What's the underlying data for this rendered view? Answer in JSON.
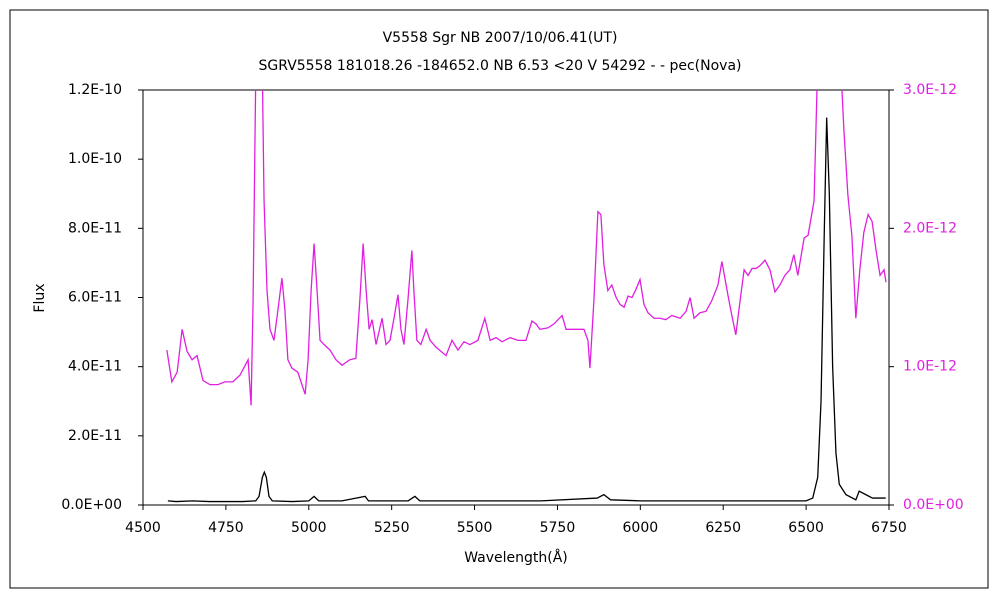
{
  "chart_data": {
    "type": "line",
    "title": "V5558 Sgr   NB   2007/10/06.41(UT)",
    "subtitle": "SGRV5558 181018.26 -184652.0 NB 6.53 <20 V 54292 - - pec(Nova)",
    "x_label": "Wavelength(Å)",
    "y_label": "Flux",
    "xlim": [
      4500,
      6750
    ],
    "xticks": [
      4500,
      4750,
      5000,
      5250,
      5500,
      5750,
      6000,
      6250,
      6500,
      6750
    ],
    "ylim": [
      0,
      1.2e-10
    ],
    "yticks": [
      {
        "value": 0,
        "label": "0.0E+00"
      },
      {
        "value": 2e-11,
        "label": "2.0E-11"
      },
      {
        "value": 4e-11,
        "label": "4.0E-11"
      },
      {
        "value": 6e-11,
        "label": "6.0E-11"
      },
      {
        "value": 8e-11,
        "label": "8.0E-11"
      },
      {
        "value": 1e-10,
        "label": "1.0E-10"
      },
      {
        "value": 1.2e-10,
        "label": "1.2E-10"
      }
    ],
    "y2lim": [
      0,
      3e-12
    ],
    "y2ticks": [
      {
        "value": 0,
        "label": "0.0E+00"
      },
      {
        "value": 1e-12,
        "label": "1.0E-12"
      },
      {
        "value": 2e-12,
        "label": "2.0E-12"
      },
      {
        "value": 3e-12,
        "label": "3.0E-12"
      }
    ],
    "y2color": "#e020e0",
    "series": [
      {
        "color": "#000000",
        "x": [
          4575,
          4600,
          4650,
          4700,
          4750,
          4800,
          4840,
          4850,
          4860,
          4866,
          4872,
          4880,
          4890,
          4950,
          5000,
          5016,
          5030,
          5100,
          5170,
          5180,
          5300,
          5320,
          5335,
          5500,
          5700,
          5870,
          5890,
          5910,
          6000,
          6200,
          6400,
          6500,
          6520,
          6535,
          6545,
          6555,
          6562,
          6570,
          6580,
          6590,
          6600,
          6620,
          6650,
          6660,
          6680,
          6700,
          6740
        ],
        "values": [
          1.2e-12,
          1e-12,
          1.2e-12,
          1e-12,
          1e-12,
          1e-12,
          1.2e-12,
          2.5e-12,
          8e-12,
          9.5e-12,
          8e-12,
          2.5e-12,
          1.2e-12,
          1e-12,
          1.2e-12,
          2.5e-12,
          1.2e-12,
          1.2e-12,
          2.5e-12,
          1.2e-12,
          1.2e-12,
          2.5e-12,
          1.2e-12,
          1.2e-12,
          1.2e-12,
          2e-12,
          3e-12,
          1.5e-12,
          1.2e-12,
          1.2e-12,
          1.2e-12,
          1.2e-12,
          2e-12,
          8e-12,
          3e-11,
          8e-11,
          1.12e-10,
          9e-11,
          4e-11,
          1.5e-11,
          6e-12,
          3e-12,
          1.5e-12,
          4e-12,
          3e-12,
          2e-12,
          2e-12
        ]
      },
      {
        "color": "#e020e0",
        "axis": "y2",
        "x": [
          4572,
          4587,
          4603,
          4618,
          4633,
          4648,
          4663,
          4681,
          4702,
          4726,
          4747,
          4771,
          4793,
          4817,
          4826,
          4832,
          4841,
          4859,
          4865,
          4874,
          4883,
          4895,
          4907,
          4919,
          4928,
          4937,
          4949,
          4967,
          4989,
          4998,
          5007,
          5016,
          5025,
          5034,
          5046,
          5064,
          5082,
          5100,
          5124,
          5142,
          5154,
          5164,
          5173,
          5182,
          5191,
          5203,
          5221,
          5233,
          5245,
          5257,
          5269,
          5278,
          5287,
          5299,
          5311,
          5317,
          5326,
          5338,
          5354,
          5366,
          5384,
          5414,
          5432,
          5450,
          5468,
          5486,
          5510,
          5531,
          5547,
          5565,
          5583,
          5607,
          5631,
          5655,
          5673,
          5685,
          5697,
          5721,
          5740,
          5764,
          5776,
          5794,
          5812,
          5830,
          5842,
          5848,
          5860,
          5872,
          5881,
          5890,
          5902,
          5914,
          5927,
          5939,
          5951,
          5963,
          5975,
          5987,
          5999,
          6011,
          6023,
          6041,
          6059,
          6077,
          6095,
          6120,
          6138,
          6150,
          6162,
          6180,
          6198,
          6216,
          6234,
          6246,
          6264,
          6276,
          6288,
          6301,
          6313,
          6325,
          6337,
          6349,
          6361,
          6376,
          6391,
          6406,
          6421,
          6436,
          6451,
          6463,
          6475,
          6494,
          6506,
          6524,
          6536,
          6602,
          6614,
          6626,
          6638,
          6650,
          6662,
          6674,
          6687,
          6699,
          6711,
          6723,
          6735,
          6741
        ],
        "values": [
          1.12e-12,
          8.9e-13,
          9.6e-13,
          1.27e-12,
          1.11e-12,
          1.05e-12,
          1.08e-12,
          9e-13,
          8.7e-13,
          8.7e-13,
          8.9e-13,
          8.9e-13,
          9.4e-13,
          1.05e-12,
          7.2e-13,
          1.48e-12,
          3.3e-12,
          3.3e-12,
          2.21e-12,
          1.55e-12,
          1.27e-12,
          1.19e-12,
          1.41e-12,
          1.64e-12,
          1.41e-12,
          1.05e-12,
          9.9e-13,
          9.6e-13,
          8e-13,
          1.05e-12,
          1.55e-12,
          1.89e-12,
          1.55e-12,
          1.19e-12,
          1.16e-12,
          1.12e-12,
          1.05e-12,
          1.01e-12,
          1.05e-12,
          1.06e-12,
          1.48e-12,
          1.89e-12,
          1.55e-12,
          1.27e-12,
          1.34e-12,
          1.16e-12,
          1.35e-12,
          1.16e-12,
          1.19e-12,
          1.35e-12,
          1.52e-12,
          1.27e-12,
          1.16e-12,
          1.48e-12,
          1.84e-12,
          1.55e-12,
          1.19e-12,
          1.16e-12,
          1.27e-12,
          1.19e-12,
          1.14e-12,
          1.08e-12,
          1.19e-12,
          1.12e-12,
          1.18e-12,
          1.16e-12,
          1.19e-12,
          1.35e-12,
          1.19e-12,
          1.21e-12,
          1.18e-12,
          1.21e-12,
          1.19e-12,
          1.19e-12,
          1.33e-12,
          1.31e-12,
          1.27e-12,
          1.28e-12,
          1.31e-12,
          1.37e-12,
          1.27e-12,
          1.27e-12,
          1.27e-12,
          1.27e-12,
          1.19e-12,
          9.9e-13,
          1.48e-12,
          2.12e-12,
          2.1e-12,
          1.74e-12,
          1.55e-12,
          1.59e-12,
          1.5e-12,
          1.45e-12,
          1.43e-12,
          1.51e-12,
          1.5e-12,
          1.56e-12,
          1.63e-12,
          1.45e-12,
          1.39e-12,
          1.35e-12,
          1.35e-12,
          1.34e-12,
          1.37e-12,
          1.35e-12,
          1.4e-12,
          1.5e-12,
          1.35e-12,
          1.39e-12,
          1.4e-12,
          1.48e-12,
          1.59e-12,
          1.76e-12,
          1.52e-12,
          1.37e-12,
          1.23e-12,
          1.48e-12,
          1.7e-12,
          1.66e-12,
          1.71e-12,
          1.71e-12,
          1.73e-12,
          1.77e-12,
          1.7e-12,
          1.54e-12,
          1.59e-12,
          1.66e-12,
          1.7e-12,
          1.81e-12,
          1.66e-12,
          1.93e-12,
          1.95e-12,
          2.2e-12,
          3.3e-12,
          3.3e-12,
          2.71e-12,
          2.24e-12,
          1.95e-12,
          1.35e-12,
          1.7e-12,
          1.97e-12,
          2.1e-12,
          2.05e-12,
          1.84e-12,
          1.66e-12,
          1.7e-12,
          1.61e-12
        ]
      }
    ]
  }
}
